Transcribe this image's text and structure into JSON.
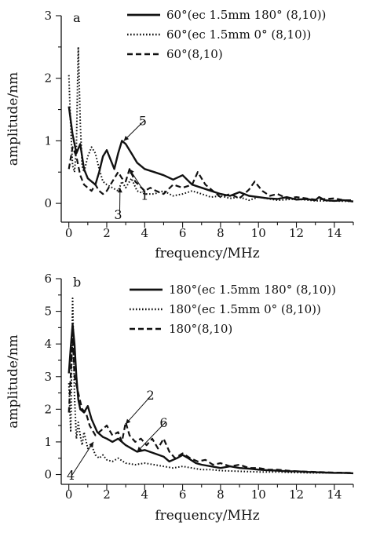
{
  "chart_data": [
    {
      "type": "line",
      "panel_label": "a",
      "xlabel": "frequency/MHz",
      "ylabel": "amplitude/nm",
      "xlim": [
        -0.4,
        15
      ],
      "ylim": [
        -0.3,
        3
      ],
      "xticks": [
        0,
        2,
        4,
        6,
        8,
        10,
        12,
        14
      ],
      "yticks": [
        0,
        1,
        2,
        3
      ],
      "grid": false,
      "legend_position": "top-right",
      "series": [
        {
          "name": "60°(ec 1.5mm 180° (8,10))",
          "style": "solid",
          "color": "#111111",
          "points": [
            [
              0,
              1.55
            ],
            [
              0.2,
              1.1
            ],
            [
              0.4,
              0.8
            ],
            [
              0.6,
              0.95
            ],
            [
              0.8,
              0.55
            ],
            [
              1.0,
              0.4
            ],
            [
              1.2,
              0.35
            ],
            [
              1.4,
              0.3
            ],
            [
              1.6,
              0.5
            ],
            [
              1.8,
              0.75
            ],
            [
              2.0,
              0.85
            ],
            [
              2.2,
              0.7
            ],
            [
              2.4,
              0.55
            ],
            [
              2.6,
              0.8
            ],
            [
              2.8,
              1.0
            ],
            [
              3.0,
              0.95
            ],
            [
              3.3,
              0.8
            ],
            [
              3.6,
              0.65
            ],
            [
              4.0,
              0.55
            ],
            [
              4.5,
              0.5
            ],
            [
              5.0,
              0.45
            ],
            [
              5.5,
              0.38
            ],
            [
              6.0,
              0.45
            ],
            [
              6.5,
              0.3
            ],
            [
              7.0,
              0.25
            ],
            [
              7.5,
              0.2
            ],
            [
              8.0,
              0.15
            ],
            [
              8.5,
              0.12
            ],
            [
              9.0,
              0.18
            ],
            [
              9.5,
              0.12
            ],
            [
              10.0,
              0.1
            ],
            [
              10.5,
              0.08
            ],
            [
              11.0,
              0.07
            ],
            [
              11.5,
              0.1
            ],
            [
              12.0,
              0.06
            ],
            [
              12.5,
              0.07
            ],
            [
              13.0,
              0.05
            ],
            [
              13.2,
              0.1
            ],
            [
              13.5,
              0.05
            ],
            [
              14.0,
              0.04
            ],
            [
              14.5,
              0.05
            ],
            [
              15,
              0.03
            ]
          ]
        },
        {
          "name": "60°(ec 1.5mm 0° (8,10))",
          "style": "dotted",
          "color": "#111111",
          "points": [
            [
              0,
              2.05
            ],
            [
              0.1,
              1.2
            ],
            [
              0.2,
              0.6
            ],
            [
              0.3,
              0.5
            ],
            [
              0.4,
              0.9
            ],
            [
              0.5,
              2.5
            ],
            [
              0.6,
              1.3
            ],
            [
              0.7,
              0.6
            ],
            [
              0.8,
              0.5
            ],
            [
              1.0,
              0.75
            ],
            [
              1.2,
              0.9
            ],
            [
              1.4,
              0.8
            ],
            [
              1.6,
              0.55
            ],
            [
              1.8,
              0.35
            ],
            [
              2.0,
              0.3
            ],
            [
              2.3,
              0.25
            ],
            [
              2.6,
              0.2
            ],
            [
              2.8,
              0.35
            ],
            [
              3.0,
              0.25
            ],
            [
              3.3,
              0.4
            ],
            [
              3.6,
              0.2
            ],
            [
              4.0,
              0.15
            ],
            [
              4.5,
              0.15
            ],
            [
              5.0,
              0.2
            ],
            [
              5.5,
              0.12
            ],
            [
              6.0,
              0.15
            ],
            [
              6.5,
              0.2
            ],
            [
              7.0,
              0.15
            ],
            [
              7.5,
              0.1
            ],
            [
              8.0,
              0.12
            ],
            [
              8.5,
              0.08
            ],
            [
              9.0,
              0.1
            ],
            [
              9.5,
              0.05
            ],
            [
              10.0,
              0.1
            ],
            [
              11.0,
              0.05
            ],
            [
              12.0,
              0.07
            ],
            [
              13.0,
              0.04
            ],
            [
              14.0,
              0.04
            ],
            [
              15,
              0.03
            ]
          ]
        },
        {
          "name": "60°(8,10)",
          "style": "dashed",
          "color": "#111111",
          "points": [
            [
              0,
              0.55
            ],
            [
              0.2,
              0.9
            ],
            [
              0.4,
              0.75
            ],
            [
              0.6,
              0.45
            ],
            [
              0.8,
              0.3
            ],
            [
              1.0,
              0.25
            ],
            [
              1.2,
              0.2
            ],
            [
              1.4,
              0.3
            ],
            [
              1.6,
              0.2
            ],
            [
              1.8,
              0.15
            ],
            [
              2.0,
              0.2
            ],
            [
              2.3,
              0.35
            ],
            [
              2.6,
              0.5
            ],
            [
              2.8,
              0.4
            ],
            [
              3.0,
              0.35
            ],
            [
              3.2,
              0.55
            ],
            [
              3.5,
              0.35
            ],
            [
              4.0,
              0.2
            ],
            [
              4.3,
              0.25
            ],
            [
              4.6,
              0.2
            ],
            [
              5.0,
              0.15
            ],
            [
              5.5,
              0.3
            ],
            [
              6.0,
              0.25
            ],
            [
              6.5,
              0.3
            ],
            [
              6.8,
              0.5
            ],
            [
              7.2,
              0.3
            ],
            [
              7.6,
              0.2
            ],
            [
              8.0,
              0.1
            ],
            [
              8.5,
              0.15
            ],
            [
              9.0,
              0.08
            ],
            [
              9.5,
              0.22
            ],
            [
              9.8,
              0.35
            ],
            [
              10.2,
              0.2
            ],
            [
              10.6,
              0.12
            ],
            [
              11.0,
              0.15
            ],
            [
              11.5,
              0.08
            ],
            [
              12.0,
              0.1
            ],
            [
              13.0,
              0.06
            ],
            [
              14.0,
              0.08
            ],
            [
              14.5,
              0.05
            ],
            [
              15,
              0.05
            ]
          ]
        }
      ],
      "annotations": [
        {
          "text": "5",
          "x": 3.9,
          "y": 1.25,
          "arrow_to": [
            2.9,
            1.0
          ]
        },
        {
          "text": "1",
          "x": 4.0,
          "y": 0.06,
          "arrow_to": [
            3.2,
            0.55
          ]
        },
        {
          "text": "3",
          "x": 2.6,
          "y": -0.25,
          "arrow_to": [
            2.7,
            0.25
          ]
        }
      ]
    },
    {
      "type": "line",
      "panel_label": "b",
      "xlabel": "frequency/MHz",
      "ylabel": "amplitude/nm",
      "xlim": [
        -0.4,
        15
      ],
      "ylim": [
        -0.3,
        6
      ],
      "xticks": [
        0,
        2,
        4,
        6,
        8,
        10,
        12,
        14
      ],
      "yticks": [
        0,
        1,
        2,
        3,
        4,
        5,
        6
      ],
      "grid": false,
      "legend_position": "top-right",
      "series": [
        {
          "name": "180°(ec 1.5mm 180° (8,10))",
          "style": "solid",
          "color": "#111111",
          "points": [
            [
              0,
              3.1
            ],
            [
              0.1,
              3.9
            ],
            [
              0.2,
              4.6
            ],
            [
              0.3,
              4.0
            ],
            [
              0.4,
              3.0
            ],
            [
              0.5,
              2.3
            ],
            [
              0.6,
              2.0
            ],
            [
              0.8,
              1.9
            ],
            [
              1.0,
              2.1
            ],
            [
              1.2,
              1.7
            ],
            [
              1.5,
              1.3
            ],
            [
              1.8,
              1.15
            ],
            [
              2.0,
              1.1
            ],
            [
              2.3,
              1.0
            ],
            [
              2.6,
              1.1
            ],
            [
              3.0,
              0.9
            ],
            [
              3.3,
              0.8
            ],
            [
              3.6,
              0.7
            ],
            [
              4.0,
              0.75
            ],
            [
              4.5,
              0.65
            ],
            [
              5.0,
              0.55
            ],
            [
              5.3,
              0.4
            ],
            [
              5.7,
              0.5
            ],
            [
              6.0,
              0.6
            ],
            [
              6.3,
              0.5
            ],
            [
              6.7,
              0.35
            ],
            [
              7.0,
              0.3
            ],
            [
              7.5,
              0.25
            ],
            [
              8.0,
              0.2
            ],
            [
              8.5,
              0.25
            ],
            [
              9.0,
              0.2
            ],
            [
              9.5,
              0.18
            ],
            [
              10.0,
              0.15
            ],
            [
              10.5,
              0.13
            ],
            [
              11.0,
              0.12
            ],
            [
              11.5,
              0.1
            ],
            [
              12.0,
              0.1
            ],
            [
              12.5,
              0.08
            ],
            [
              13.0,
              0.07
            ],
            [
              13.5,
              0.06
            ],
            [
              14.0,
              0.05
            ],
            [
              14.5,
              0.05
            ],
            [
              15,
              0.04
            ]
          ]
        },
        {
          "name": "180°(ec 1.5mm 0° (8,10))",
          "style": "dotted",
          "color": "#111111",
          "points": [
            [
              0,
              2.8
            ],
            [
              0.1,
              1.3
            ],
            [
              0.2,
              5.4
            ],
            [
              0.3,
              2.4
            ],
            [
              0.4,
              1.1
            ],
            [
              0.5,
              1.6
            ],
            [
              0.6,
              1.2
            ],
            [
              0.7,
              0.9
            ],
            [
              0.8,
              1.3
            ],
            [
              1.0,
              0.8
            ],
            [
              1.2,
              0.9
            ],
            [
              1.4,
              0.6
            ],
            [
              1.6,
              0.5
            ],
            [
              1.8,
              0.6
            ],
            [
              2.0,
              0.45
            ],
            [
              2.3,
              0.4
            ],
            [
              2.6,
              0.5
            ],
            [
              3.0,
              0.35
            ],
            [
              3.5,
              0.3
            ],
            [
              4.0,
              0.35
            ],
            [
              4.5,
              0.3
            ],
            [
              5.0,
              0.25
            ],
            [
              5.5,
              0.2
            ],
            [
              6.0,
              0.25
            ],
            [
              6.5,
              0.2
            ],
            [
              7.0,
              0.15
            ],
            [
              7.5,
              0.15
            ],
            [
              8.0,
              0.12
            ],
            [
              9.0,
              0.1
            ],
            [
              10.0,
              0.08
            ],
            [
              11.0,
              0.08
            ],
            [
              12.0,
              0.06
            ],
            [
              13.0,
              0.05
            ],
            [
              14.0,
              0.05
            ],
            [
              15,
              0.04
            ]
          ]
        },
        {
          "name": "180°(8,10)",
          "style": "dashed",
          "color": "#111111",
          "points": [
            [
              0,
              1.9
            ],
            [
              0.2,
              4.2
            ],
            [
              0.3,
              3.0
            ],
            [
              0.5,
              2.5
            ],
            [
              0.7,
              2.0
            ],
            [
              0.9,
              1.9
            ],
            [
              1.1,
              1.5
            ],
            [
              1.4,
              1.2
            ],
            [
              1.7,
              1.35
            ],
            [
              2.0,
              1.5
            ],
            [
              2.3,
              1.2
            ],
            [
              2.6,
              1.3
            ],
            [
              2.8,
              1.0
            ],
            [
              3.0,
              1.6
            ],
            [
              3.2,
              1.2
            ],
            [
              3.5,
              1.0
            ],
            [
              3.8,
              1.1
            ],
            [
              4.1,
              0.9
            ],
            [
              4.4,
              1.1
            ],
            [
              4.7,
              0.8
            ],
            [
              5.0,
              1.1
            ],
            [
              5.3,
              0.7
            ],
            [
              5.6,
              0.5
            ],
            [
              6.0,
              0.65
            ],
            [
              6.4,
              0.5
            ],
            [
              6.8,
              0.4
            ],
            [
              7.2,
              0.45
            ],
            [
              7.6,
              0.3
            ],
            [
              8.0,
              0.35
            ],
            [
              8.5,
              0.25
            ],
            [
              9.0,
              0.3
            ],
            [
              9.5,
              0.2
            ],
            [
              10.0,
              0.2
            ],
            [
              10.5,
              0.15
            ],
            [
              11.0,
              0.15
            ],
            [
              11.5,
              0.12
            ],
            [
              12.0,
              0.1
            ],
            [
              13.0,
              0.08
            ],
            [
              14.0,
              0.06
            ],
            [
              15,
              0.05
            ]
          ]
        }
      ],
      "annotations": [
        {
          "text": "2",
          "x": 4.3,
          "y": 2.3,
          "arrow_to": [
            3.0,
            1.55
          ]
        },
        {
          "text": "6",
          "x": 5.0,
          "y": 1.45,
          "arrow_to": [
            3.6,
            0.7
          ]
        },
        {
          "text": "4",
          "x": 0.1,
          "y": -0.15,
          "arrow_to": [
            1.3,
            1.0
          ]
        }
      ]
    }
  ]
}
